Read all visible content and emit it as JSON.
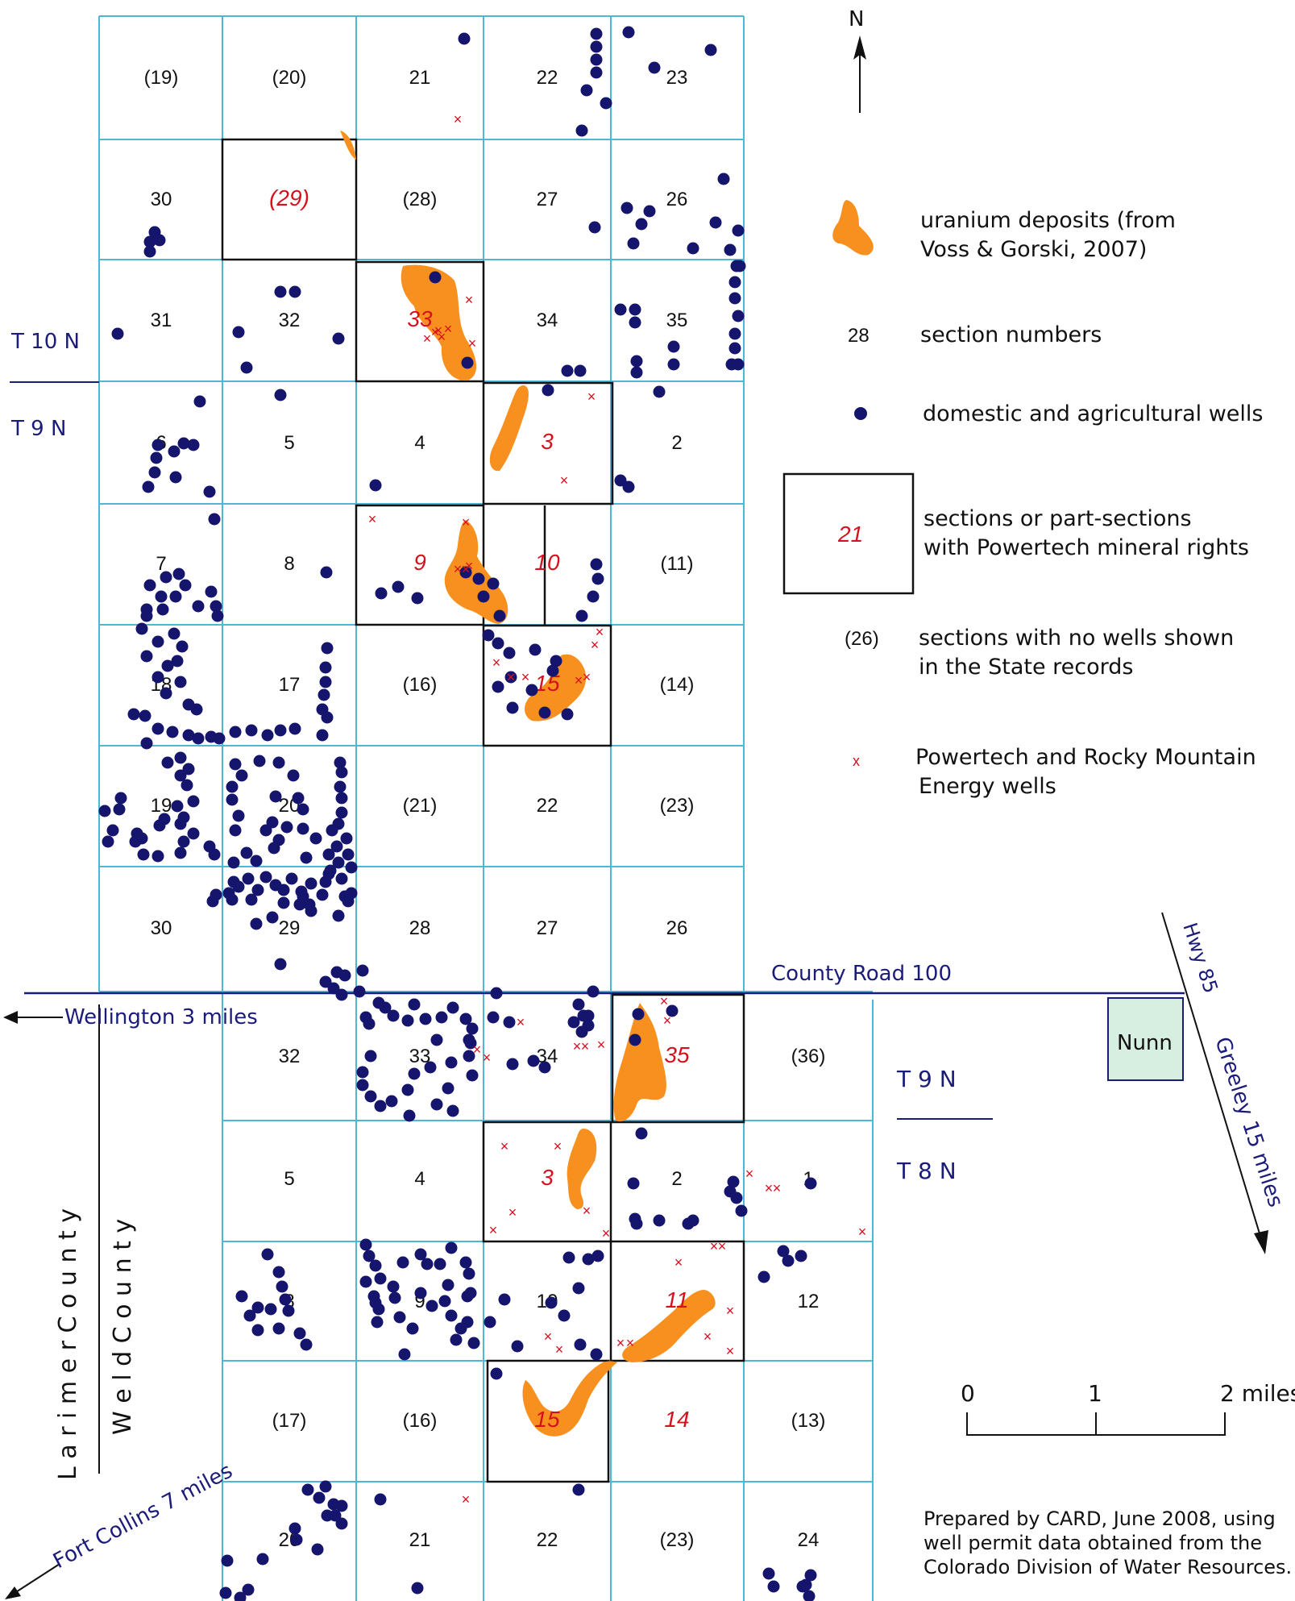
{
  "north": {
    "label": "N"
  },
  "townships": {
    "t10n": "T 10 N",
    "t9n_left": "T 9 N",
    "t9n_right": "T 9 N",
    "t8n": "T 8 N"
  },
  "roads": {
    "county_road": "County Road 100",
    "wellington": "Wellington 3 miles",
    "hwy": "Hwy 85",
    "greeley": "Greeley 15 miles",
    "fort_collins": "Fort Collins 7 miles"
  },
  "towns": {
    "nunn": "Nunn"
  },
  "counties": {
    "larimer": "L a r i m e r   C o u n t y",
    "weld": "W e l d   C o u n t y"
  },
  "legend": {
    "uranium_line1": "uranium deposits (from",
    "uranium_line2": "Voss & Gorski, 2007)",
    "section_sample": "28",
    "section_text": "section numbers",
    "wells_text": "domestic and agricultural wells",
    "rights_sample": "21",
    "rights_line1": "sections or part-sections",
    "rights_line2": "with Powertech mineral rights",
    "nowells_sample": "(26)",
    "nowells_line1": "sections with no wells shown",
    "nowells_line2": "in the State records",
    "x_symbol": "x",
    "powertech_line1": "Powertech and Rocky Mountain",
    "powertech_line2": "Energy wells"
  },
  "scale": {
    "zero": "0",
    "one": "1",
    "two": "2 miles"
  },
  "credit": {
    "line1": "Prepared by CARD, June 2008, using",
    "line2": "well permit data obtained from the",
    "line3": "Colorado Division of Water Resources."
  },
  "colors": {
    "grid": "#4fb6d3",
    "uranium": "#f7901e",
    "wells": "#15156e",
    "red": "#d4111f",
    "nunn_fill": "#d6efe0"
  },
  "sections": [
    {
      "row": 0,
      "col": 0,
      "label": "(19)",
      "red": false
    },
    {
      "row": 0,
      "col": 1,
      "label": "(20)",
      "red": false
    },
    {
      "row": 0,
      "col": 2,
      "label": "21",
      "red": false
    },
    {
      "row": 0,
      "col": 3,
      "label": "22",
      "red": false
    },
    {
      "row": 0,
      "col": 4,
      "label": "23",
      "red": false
    },
    {
      "row": 1,
      "col": 0,
      "label": "30",
      "red": false
    },
    {
      "row": 1,
      "col": 1,
      "label": "(29)",
      "red": true
    },
    {
      "row": 1,
      "col": 2,
      "label": "(28)",
      "red": false
    },
    {
      "row": 1,
      "col": 3,
      "label": "27",
      "red": false
    },
    {
      "row": 1,
      "col": 4,
      "label": "26",
      "red": false
    },
    {
      "row": 2,
      "col": 0,
      "label": "31",
      "red": false
    },
    {
      "row": 2,
      "col": 1,
      "label": "32",
      "red": false
    },
    {
      "row": 2,
      "col": 2,
      "label": "33",
      "red": true
    },
    {
      "row": 2,
      "col": 3,
      "label": "34",
      "red": false
    },
    {
      "row": 2,
      "col": 4,
      "label": "35",
      "red": false
    },
    {
      "row": 3,
      "col": 0,
      "label": "6",
      "red": false
    },
    {
      "row": 3,
      "col": 1,
      "label": "5",
      "red": false
    },
    {
      "row": 3,
      "col": 2,
      "label": "4",
      "red": false
    },
    {
      "row": 3,
      "col": 3,
      "label": "3",
      "red": true
    },
    {
      "row": 3,
      "col": 4,
      "label": "2",
      "red": false
    },
    {
      "row": 4,
      "col": 0,
      "label": "7",
      "red": false
    },
    {
      "row": 4,
      "col": 1,
      "label": "8",
      "red": false
    },
    {
      "row": 4,
      "col": 2,
      "label": "9",
      "red": true
    },
    {
      "row": 4,
      "col": 3,
      "label": "10",
      "red": true
    },
    {
      "row": 4,
      "col": 4,
      "label": "(11)",
      "red": false
    },
    {
      "row": 5,
      "col": 0,
      "label": "18",
      "red": false
    },
    {
      "row": 5,
      "col": 1,
      "label": "17",
      "red": false
    },
    {
      "row": 5,
      "col": 2,
      "label": "(16)",
      "red": false
    },
    {
      "row": 5,
      "col": 3,
      "label": "15",
      "red": true
    },
    {
      "row": 5,
      "col": 4,
      "label": "(14)",
      "red": false
    },
    {
      "row": 6,
      "col": 0,
      "label": "19",
      "red": false
    },
    {
      "row": 6,
      "col": 1,
      "label": "20",
      "red": false
    },
    {
      "row": 6,
      "col": 2,
      "label": "(21)",
      "red": false
    },
    {
      "row": 6,
      "col": 3,
      "label": "22",
      "red": false
    },
    {
      "row": 6,
      "col": 4,
      "label": "(23)",
      "red": false
    },
    {
      "row": 7,
      "col": 0,
      "label": "30",
      "red": false
    },
    {
      "row": 7,
      "col": 1,
      "label": "29",
      "red": false
    },
    {
      "row": 7,
      "col": 2,
      "label": "28",
      "red": false
    },
    {
      "row": 7,
      "col": 3,
      "label": "27",
      "red": false
    },
    {
      "row": 7,
      "col": 4,
      "label": "26",
      "red": false
    },
    {
      "row": 8,
      "col": 1,
      "label": "32",
      "red": false
    },
    {
      "row": 8,
      "col": 2,
      "label": "33",
      "red": false
    },
    {
      "row": 8,
      "col": 3,
      "label": "34",
      "red": false
    },
    {
      "row": 8,
      "col": 4,
      "label": "35",
      "red": true
    },
    {
      "row": 8,
      "col": 5,
      "label": "(36)",
      "red": false
    },
    {
      "row": 9,
      "col": 1,
      "label": "5",
      "red": false
    },
    {
      "row": 9,
      "col": 2,
      "label": "4",
      "red": false
    },
    {
      "row": 9,
      "col": 3,
      "label": "3",
      "red": true
    },
    {
      "row": 9,
      "col": 4,
      "label": "2",
      "red": false
    },
    {
      "row": 9,
      "col": 5,
      "label": "1",
      "red": false
    },
    {
      "row": 10,
      "col": 1,
      "label": "8",
      "red": false
    },
    {
      "row": 10,
      "col": 2,
      "label": "9",
      "red": false
    },
    {
      "row": 10,
      "col": 3,
      "label": "10",
      "red": false
    },
    {
      "row": 10,
      "col": 4,
      "label": "11",
      "red": true
    },
    {
      "row": 10,
      "col": 5,
      "label": "12",
      "red": false
    },
    {
      "row": 11,
      "col": 1,
      "label": "(17)",
      "red": false
    },
    {
      "row": 11,
      "col": 2,
      "label": "(16)",
      "red": false
    },
    {
      "row": 11,
      "col": 3,
      "label": "15",
      "red": true
    },
    {
      "row": 11,
      "col": 4,
      "label": "14",
      "red": true
    },
    {
      "row": 11,
      "col": 5,
      "label": "(13)",
      "red": false
    },
    {
      "row": 12,
      "col": 1,
      "label": "20",
      "red": false
    },
    {
      "row": 12,
      "col": 2,
      "label": "21",
      "red": false
    },
    {
      "row": 12,
      "col": 3,
      "label": "22",
      "red": false
    },
    {
      "row": 12,
      "col": 4,
      "label": "(23)",
      "red": false
    },
    {
      "row": 12,
      "col": 5,
      "label": "24",
      "red": false
    }
  ]
}
